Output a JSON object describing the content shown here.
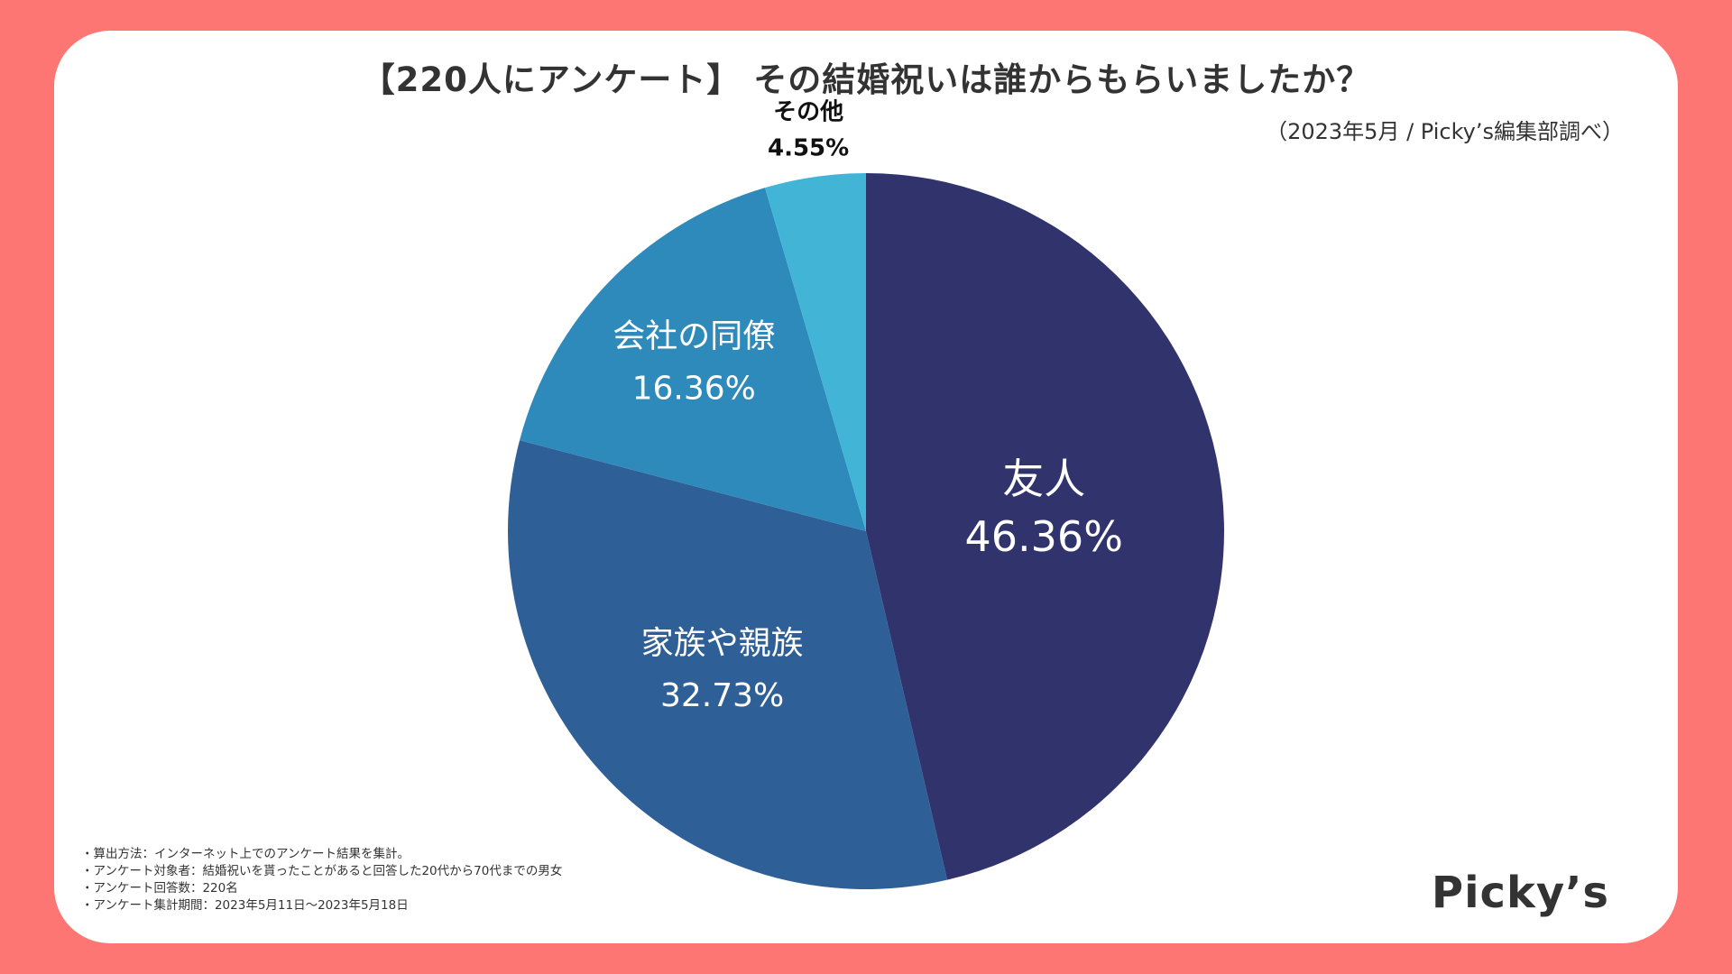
{
  "title": "【220人にアンケート】 その結婚祝いは誰からもらいましたか？",
  "source": "（2023年5月 / Picky’s編集部調べ）",
  "chart_data": {
    "type": "pie",
    "title": "【220人にアンケート】 その結婚祝いは誰からもらいましたか？",
    "slices": [
      {
        "label": "友人",
        "value": 46.36,
        "display": "46.36%",
        "color": "#31346c",
        "label_color": "#ffffff"
      },
      {
        "label": "家族や親族",
        "value": 32.73,
        "display": "32.73%",
        "color": "#2f5f97",
        "label_color": "#ffffff"
      },
      {
        "label": "会社の同僚",
        "value": 16.36,
        "display": "16.36%",
        "color": "#2e8abb",
        "label_color": "#ffffff"
      },
      {
        "label": "その他",
        "value": 4.55,
        "display": "4.55%",
        "color": "#42b5d7",
        "label_color": "#111111"
      }
    ],
    "start": "12 o'clock",
    "direction": "clockwise"
  },
  "notes": [
    "・算出方法：インターネット上でのアンケート結果を集計。",
    "・アンケート対象者：結婚祝いを貰ったことがあると回答した20代から70代までの男女",
    "・アンケート回答数：220名",
    "・アンケート集計期間：2023年5月11日〜2023年5月18日"
  ],
  "brand": "Picky’s"
}
